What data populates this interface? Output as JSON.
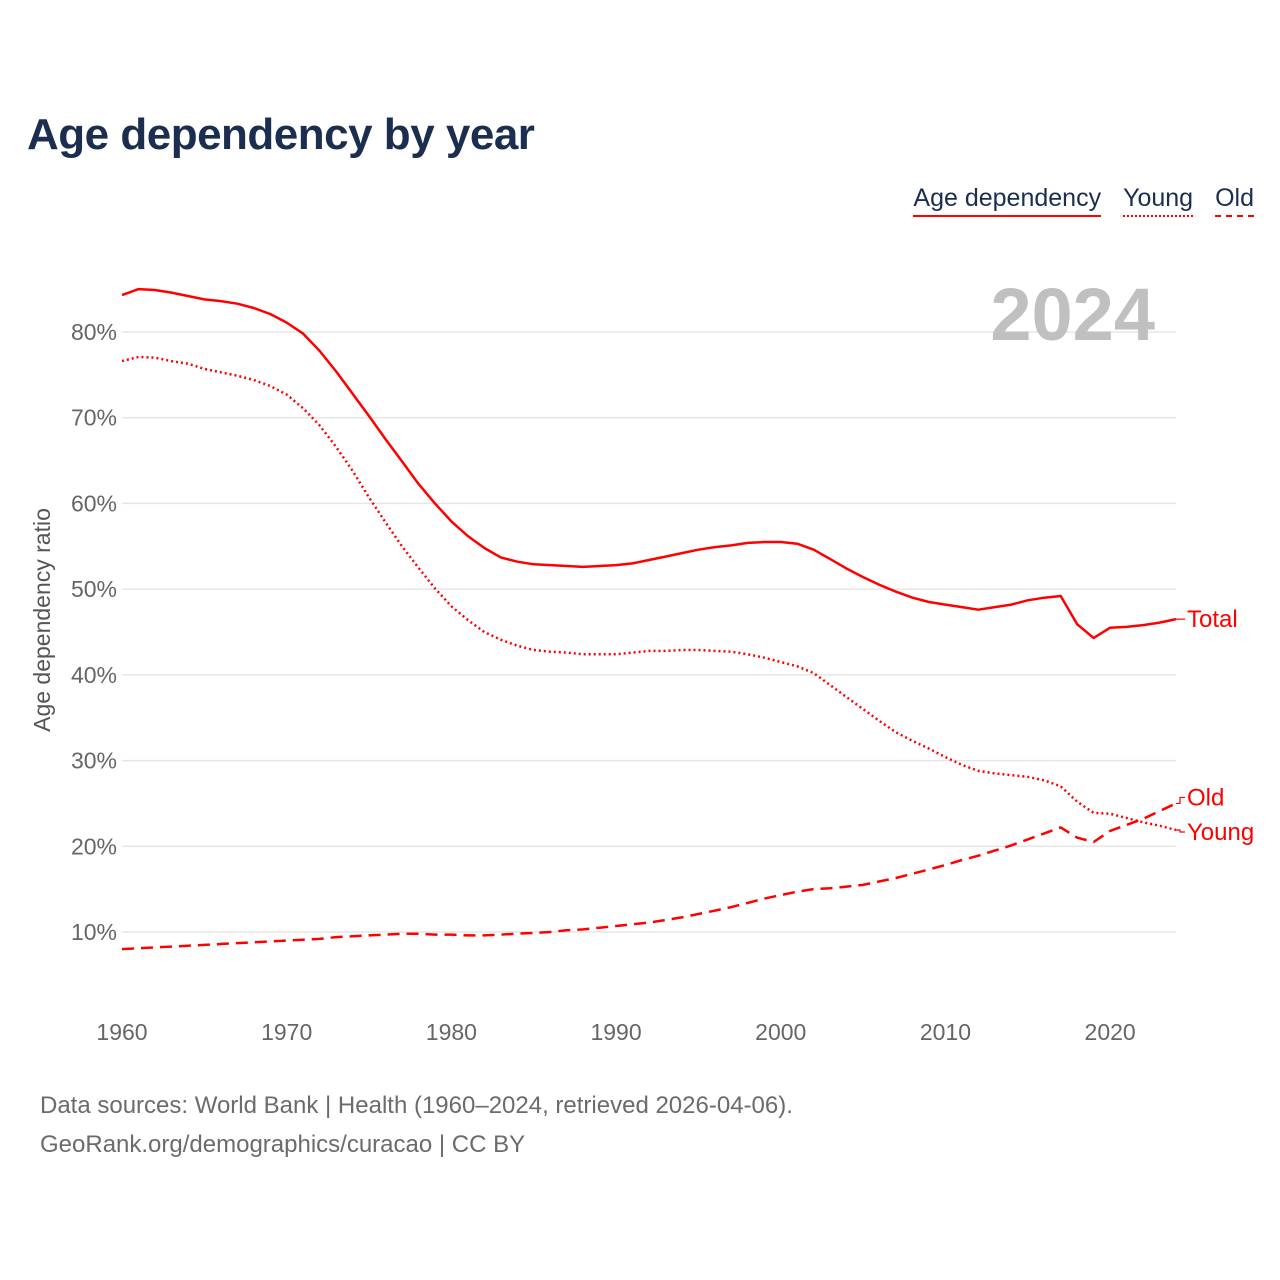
{
  "chart_data": {
    "type": "line",
    "title": "Age dependency by year",
    "xlabel": "",
    "ylabel": "Age dependency ratio",
    "xlim": [
      1960,
      2024
    ],
    "ylim": [
      0,
      88
    ],
    "x_ticks": [
      1960,
      1970,
      1980,
      1990,
      2000,
      2010,
      2020
    ],
    "x_tick_labels": [
      "1960",
      "1970",
      "1980",
      "1990",
      "2000",
      "2010",
      "2020"
    ],
    "y_ticks": [
      10,
      20,
      30,
      40,
      50,
      60,
      70,
      80
    ],
    "y_tick_labels": [
      "10%",
      "20%",
      "30%",
      "40%",
      "50%",
      "60%",
      "70%",
      "80%"
    ],
    "grid": true,
    "legend_position": "top-right",
    "year_watermark": "2024",
    "x": [
      1960,
      1961,
      1962,
      1963,
      1964,
      1965,
      1966,
      1967,
      1968,
      1969,
      1970,
      1971,
      1972,
      1973,
      1974,
      1975,
      1976,
      1977,
      1978,
      1979,
      1980,
      1981,
      1982,
      1983,
      1984,
      1985,
      1986,
      1987,
      1988,
      1989,
      1990,
      1991,
      1992,
      1993,
      1994,
      1995,
      1996,
      1997,
      1998,
      1999,
      2000,
      2001,
      2002,
      2003,
      2004,
      2005,
      2006,
      2007,
      2008,
      2009,
      2010,
      2011,
      2012,
      2013,
      2014,
      2015,
      2016,
      2017,
      2018,
      2019,
      2020,
      2021,
      2022,
      2023,
      2024
    ],
    "series": [
      {
        "name": "Age dependency",
        "end_label": "Total",
        "style": "solid",
        "color": "#ff0000",
        "values": [
          84.3,
          85.0,
          84.9,
          84.6,
          84.2,
          83.8,
          83.6,
          83.3,
          82.8,
          82.1,
          81.1,
          79.8,
          77.8,
          75.4,
          72.8,
          70.2,
          67.5,
          64.9,
          62.3,
          60.0,
          57.9,
          56.2,
          54.8,
          53.7,
          53.2,
          52.9,
          52.8,
          52.7,
          52.6,
          52.7,
          52.8,
          53.0,
          53.4,
          53.8,
          54.2,
          54.6,
          54.9,
          55.1,
          55.4,
          55.5,
          55.5,
          55.3,
          54.6,
          53.5,
          52.4,
          51.4,
          50.5,
          49.7,
          49.0,
          48.5,
          48.2,
          47.9,
          47.6,
          47.9,
          48.2,
          48.7,
          49.0,
          49.2,
          45.9,
          44.3,
          45.5,
          45.6,
          45.8,
          46.1,
          46.5
        ]
      },
      {
        "name": "Young",
        "end_label": "Young",
        "style": "dotted",
        "color": "#ff0000",
        "values": [
          76.6,
          77.1,
          77.0,
          76.6,
          76.3,
          75.7,
          75.3,
          74.9,
          74.4,
          73.7,
          72.7,
          71.1,
          69.1,
          66.6,
          63.8,
          60.7,
          57.8,
          55.0,
          52.5,
          50.1,
          48.0,
          46.4,
          45.0,
          44.1,
          43.4,
          42.9,
          42.7,
          42.6,
          42.4,
          42.4,
          42.4,
          42.6,
          42.8,
          42.8,
          42.9,
          42.9,
          42.8,
          42.7,
          42.4,
          42.0,
          41.5,
          41.0,
          40.2,
          38.8,
          37.4,
          36.0,
          34.6,
          33.3,
          32.3,
          31.4,
          30.4,
          29.5,
          28.8,
          28.5,
          28.3,
          28.1,
          27.7,
          27.0,
          25.2,
          23.9,
          23.8,
          23.3,
          22.8,
          22.4,
          21.9
        ]
      },
      {
        "name": "Old",
        "end_label": "Old",
        "style": "dashed",
        "color": "#ff0000",
        "values": [
          8.0,
          8.1,
          8.2,
          8.3,
          8.4,
          8.5,
          8.6,
          8.7,
          8.8,
          8.9,
          9.0,
          9.1,
          9.2,
          9.4,
          9.5,
          9.6,
          9.7,
          9.8,
          9.8,
          9.7,
          9.7,
          9.6,
          9.6,
          9.7,
          9.8,
          9.9,
          10.0,
          10.2,
          10.3,
          10.5,
          10.7,
          10.9,
          11.1,
          11.4,
          11.7,
          12.1,
          12.5,
          12.9,
          13.4,
          13.9,
          14.3,
          14.7,
          15.0,
          15.1,
          15.3,
          15.5,
          15.9,
          16.3,
          16.8,
          17.3,
          17.8,
          18.4,
          18.9,
          19.5,
          20.1,
          20.8,
          21.5,
          22.2,
          21.0,
          20.5,
          21.8,
          22.5,
          23.2,
          24.1,
          25.0
        ]
      }
    ]
  },
  "footer": {
    "line1": "Data sources: World Bank | Health (1960–2024, retrieved 2026-04-06).",
    "line2": "GeoRank.org/demographics/curacao | CC BY"
  }
}
